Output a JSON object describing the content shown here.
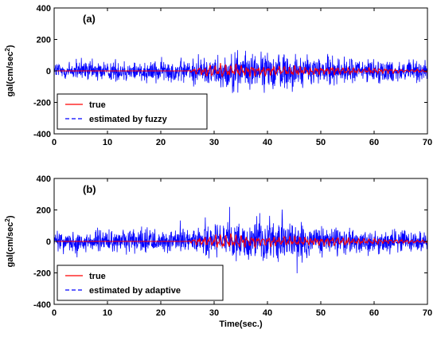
{
  "chart_data": [
    {
      "type": "line",
      "panel_label": "(a)",
      "xlabel": "",
      "ylabel": "gal(cm/sec",
      "ylabel_sup": "2",
      "ylabel_close": ")",
      "xlim": [
        0,
        70
      ],
      "ylim": [
        -400,
        400
      ],
      "x_ticks": [
        "0",
        "10",
        "20",
        "30",
        "40",
        "50",
        "60",
        "70"
      ],
      "y_ticks": [
        "400",
        "200",
        "0",
        "-200",
        "-400"
      ],
      "grid": false,
      "legend_position": "bottom-left",
      "series": [
        {
          "name": "true",
          "color": "#ff0000",
          "style": "solid",
          "envelope": {
            "t": [
              0,
              25,
              27,
              29,
              31,
              33,
              36,
              40,
              44,
              48,
              52,
              56,
              60,
              65,
              70
            ],
            "amplitude": [
              0,
              0,
              30,
              45,
              55,
              50,
              40,
              35,
              35,
              30,
              30,
              25,
              20,
              15,
              10
            ]
          }
        },
        {
          "name": "estimated by fuzzy",
          "color": "#0000ff",
          "style": "dashed",
          "envelope": {
            "t": [
              0,
              10,
              20,
              25,
              30,
              33,
              36,
              40,
              43,
              46,
              50,
              55,
              60,
              65,
              70
            ],
            "amplitude": [
              95,
              95,
              100,
              105,
              130,
              160,
              170,
              155,
              190,
              140,
              130,
              115,
              105,
              100,
              95
            ]
          }
        }
      ]
    },
    {
      "type": "line",
      "panel_label": "(b)",
      "xlabel": "Time(sec.)",
      "ylabel": "gal(cm/sec",
      "ylabel_sup": "2",
      "ylabel_close": ")",
      "xlim": [
        0,
        70
      ],
      "ylim": [
        -400,
        400
      ],
      "x_ticks": [
        "0",
        "10",
        "20",
        "30",
        "40",
        "50",
        "60",
        "70"
      ],
      "y_ticks": [
        "400",
        "200",
        "0",
        "-200",
        "-400"
      ],
      "grid": false,
      "legend_position": "bottom-left",
      "series": [
        {
          "name": "true",
          "color": "#ff0000",
          "style": "solid",
          "envelope": {
            "t": [
              0,
              25,
              27,
              29,
              31,
              33,
              36,
              40,
              44,
              48,
              52,
              56,
              60,
              65,
              70
            ],
            "amplitude": [
              0,
              0,
              30,
              45,
              55,
              50,
              40,
              35,
              35,
              30,
              30,
              25,
              20,
              15,
              10
            ]
          }
        },
        {
          "name": "estimated by adaptive",
          "color": "#0000ff",
          "style": "dashed",
          "envelope": {
            "t": [
              0,
              10,
              20,
              25,
              30,
              33,
              36,
              40,
              43,
              46,
              50,
              55,
              60,
              65,
              70
            ],
            "amplitude": [
              100,
              100,
              100,
              110,
              140,
              165,
              170,
              160,
              180,
              150,
              135,
              120,
              110,
              100,
              100
            ]
          }
        }
      ]
    }
  ]
}
